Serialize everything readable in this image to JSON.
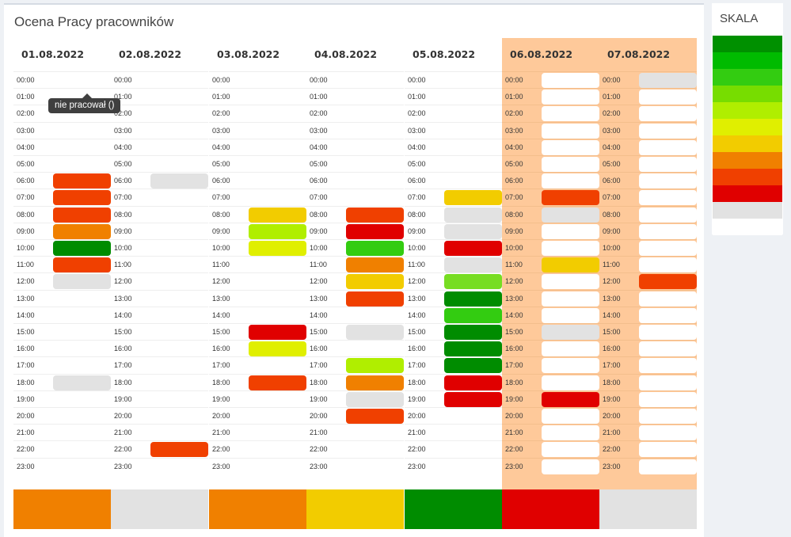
{
  "title": "Ocena Pracy pracowników",
  "tooltip": "nie pracował ()",
  "scale": {
    "title": "SKALA",
    "colors": [
      "#009000",
      "#00bb00",
      "#33cc11",
      "#77dd00",
      "#b0ee00",
      "#e0ef00",
      "#f2cc00",
      "#f08000",
      "#f04000",
      "#e00000",
      "#e2e2e2",
      "#ffffff"
    ]
  },
  "hours": [
    "00:00",
    "01:00",
    "02:00",
    "03:00",
    "04:00",
    "05:00",
    "06:00",
    "07:00",
    "08:00",
    "09:00",
    "10:00",
    "11:00",
    "12:00",
    "13:00",
    "14:00",
    "15:00",
    "16:00",
    "17:00",
    "18:00",
    "19:00",
    "20:00",
    "21:00",
    "22:00",
    "23:00"
  ],
  "colors": {
    "dg": "#008c00",
    "g": "#33cc11",
    "lg": "#77dd22",
    "yg": "#b0ee00",
    "ly": "#e0ef00",
    "y": "#f2cc00",
    "o": "#f08000",
    "ro": "#f04000",
    "r": "#e00000",
    "gr": "#e2e2e2",
    "w": "#ffffff"
  },
  "days": [
    {
      "date": "01.08.2022",
      "weekend": false,
      "summary": "#f08000",
      "cells": {
        "06:00": "ro",
        "07:00": "ro",
        "08:00": "ro",
        "09:00": "o",
        "10:00": "dg",
        "11:00": "ro",
        "12:00": "gr",
        "18:00": "gr"
      }
    },
    {
      "date": "02.08.2022",
      "weekend": false,
      "summary": "#e2e2e2",
      "cells": {
        "06:00": "gr",
        "22:00": "ro"
      }
    },
    {
      "date": "03.08.2022",
      "weekend": false,
      "summary": "#f08000",
      "cells": {
        "08:00": "y",
        "09:00": "yg",
        "10:00": "ly",
        "15:00": "r",
        "16:00": "ly",
        "18:00": "ro"
      }
    },
    {
      "date": "04.08.2022",
      "weekend": false,
      "summary": "#f2cc00",
      "cells": {
        "08:00": "ro",
        "09:00": "r",
        "10:00": "g",
        "11:00": "o",
        "12:00": "y",
        "13:00": "ro",
        "15:00": "gr",
        "17:00": "yg",
        "18:00": "o",
        "19:00": "gr",
        "20:00": "ro"
      }
    },
    {
      "date": "05.08.2022",
      "weekend": false,
      "summary": "#008c00",
      "cells": {
        "07:00": "y",
        "08:00": "gr",
        "09:00": "gr",
        "10:00": "r",
        "11:00": "gr",
        "12:00": "lg",
        "13:00": "dg",
        "14:00": "g",
        "15:00": "dg",
        "16:00": "dg",
        "17:00": "dg",
        "18:00": "r",
        "19:00": "r"
      }
    },
    {
      "date": "06.08.2022",
      "weekend": true,
      "summary": "#e00000",
      "cells": {
        "00:00": "w",
        "01:00": "w",
        "02:00": "w",
        "03:00": "w",
        "04:00": "w",
        "05:00": "w",
        "06:00": "w",
        "07:00": "ro",
        "08:00": "gr",
        "09:00": "w",
        "10:00": "w",
        "11:00": "y",
        "12:00": "w",
        "13:00": "w",
        "14:00": "w",
        "15:00": "gr",
        "16:00": "w",
        "17:00": "w",
        "18:00": "w",
        "19:00": "r",
        "20:00": "w",
        "21:00": "w",
        "22:00": "w",
        "23:00": "w"
      }
    },
    {
      "date": "07.08.2022",
      "weekend": true,
      "summary": "#e2e2e2",
      "cells": {
        "00:00": "gr",
        "01:00": "w",
        "02:00": "w",
        "03:00": "w",
        "04:00": "w",
        "05:00": "w",
        "06:00": "w",
        "07:00": "w",
        "08:00": "w",
        "09:00": "w",
        "10:00": "w",
        "11:00": "w",
        "12:00": "ro",
        "13:00": "w",
        "14:00": "w",
        "15:00": "w",
        "16:00": "w",
        "17:00": "w",
        "18:00": "w",
        "19:00": "w",
        "20:00": "w",
        "21:00": "w",
        "22:00": "w",
        "23:00": "w"
      }
    }
  ]
}
